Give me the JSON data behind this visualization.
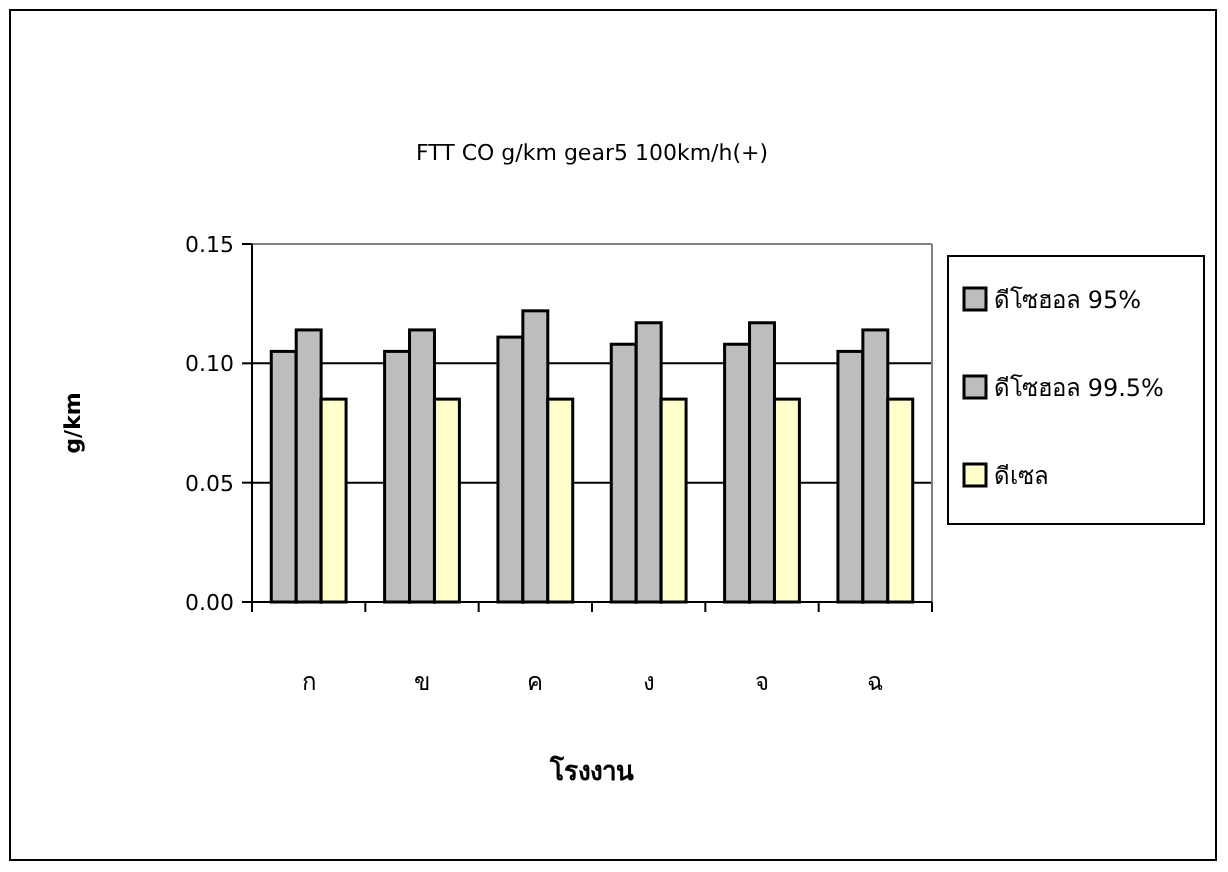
{
  "chart_data": {
    "type": "bar",
    "title": "FTT CO g/km gear5 100km/h(+)",
    "xlabel": "โรงงาน",
    "ylabel": "g/km",
    "categories": [
      "ก",
      "ข",
      "ค",
      "ง",
      "จ",
      "ฉ"
    ],
    "series": [
      {
        "name": "ดีโซฮอล 95%",
        "color": "#bdbdbd",
        "values": [
          0.105,
          0.105,
          0.111,
          0.108,
          0.108,
          0.105
        ]
      },
      {
        "name": "ดีโซฮอล 99.5%",
        "color": "#bdbdbd",
        "values": [
          0.114,
          0.114,
          0.122,
          0.117,
          0.117,
          0.114
        ]
      },
      {
        "name": "ดีเซล",
        "color": "#ffffcc",
        "values": [
          0.085,
          0.085,
          0.085,
          0.085,
          0.085,
          0.085
        ]
      }
    ],
    "ylim": [
      0,
      0.15
    ],
    "yticks": [
      {
        "value": 0,
        "label": "0.00"
      },
      {
        "value": 0.05,
        "label": "0.05"
      },
      {
        "value": 0.1,
        "label": "0.10"
      },
      {
        "value": 0.15,
        "label": "0.15"
      }
    ],
    "grid": "y",
    "legend": "right"
  }
}
